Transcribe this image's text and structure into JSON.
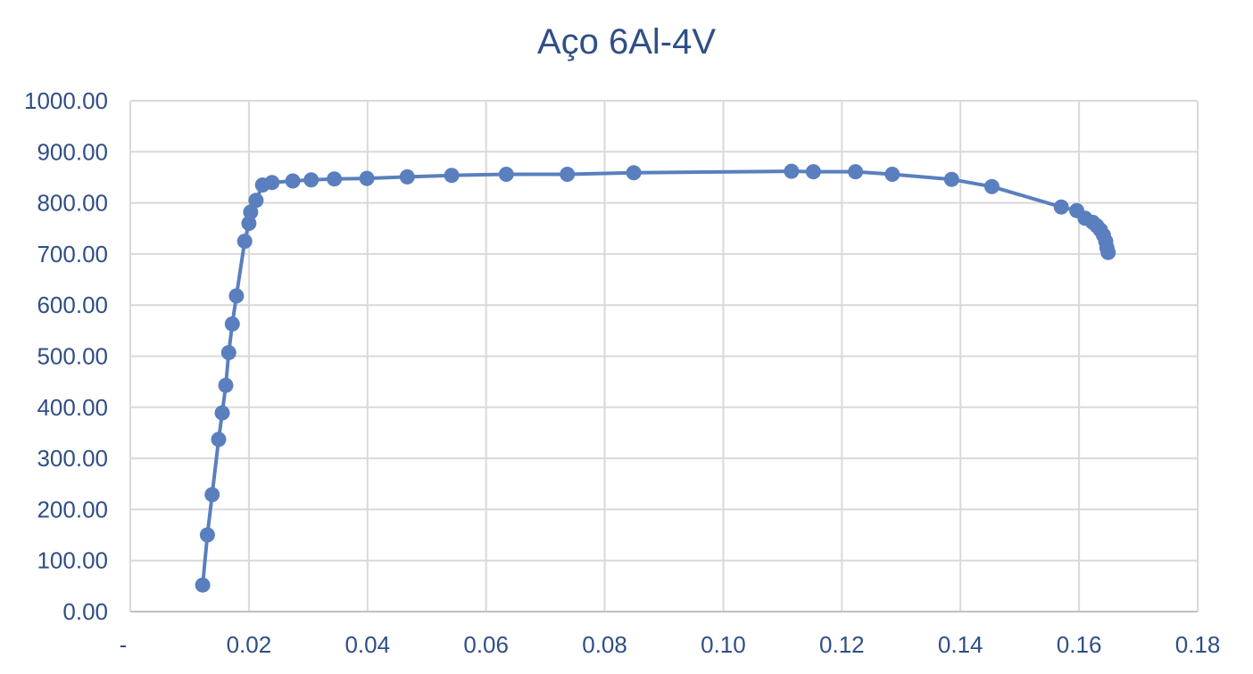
{
  "chart_data": {
    "type": "scatter",
    "title": "Aço 6Al-4V",
    "xlabel": "",
    "ylabel": "",
    "xlim": [
      0,
      0.18
    ],
    "ylim": [
      0,
      1000
    ],
    "grid": true,
    "legend": "none",
    "x_ticks": [
      "-",
      "0.02",
      "0.04",
      "0.06",
      "0.08",
      "0.10",
      "0.12",
      "0.14",
      "0.16",
      "0.18"
    ],
    "y_ticks": [
      "0.00",
      "100.00",
      "200.00",
      "300.00",
      "400.00",
      "500.00",
      "600.00",
      "700.00",
      "800.00",
      "900.00",
      "1000.00"
    ],
    "colors": {
      "series": "#5a7fbe",
      "title": "#2f4f86",
      "ticks": "#2f4f86",
      "grid": "#d9d9d9"
    },
    "series": [
      {
        "x": [
          0.0122,
          0.013,
          0.0138,
          0.0149,
          0.0155,
          0.0161,
          0.0166,
          0.0172,
          0.0179,
          0.0193,
          0.02,
          0.0203,
          0.0212,
          0.0223,
          0.0239,
          0.0274,
          0.0305,
          0.0344,
          0.0399,
          0.0467,
          0.0542,
          0.0634,
          0.0737,
          0.0849,
          0.1115,
          0.1152,
          0.1223,
          0.1285,
          0.1385,
          0.1453,
          0.157,
          0.1596,
          0.161,
          0.1623,
          0.163,
          0.1636,
          0.1641,
          0.1645,
          0.1647,
          0.1649
        ],
        "y": [
          52,
          150,
          229,
          337,
          389,
          443,
          507,
          563,
          618,
          725,
          760,
          782,
          805,
          835,
          840,
          843,
          845,
          847,
          848,
          851,
          854,
          856,
          856,
          859,
          862,
          861,
          861,
          856,
          846,
          832,
          792,
          785,
          770,
          762,
          755,
          747,
          737,
          725,
          712,
          703
        ]
      }
    ]
  }
}
